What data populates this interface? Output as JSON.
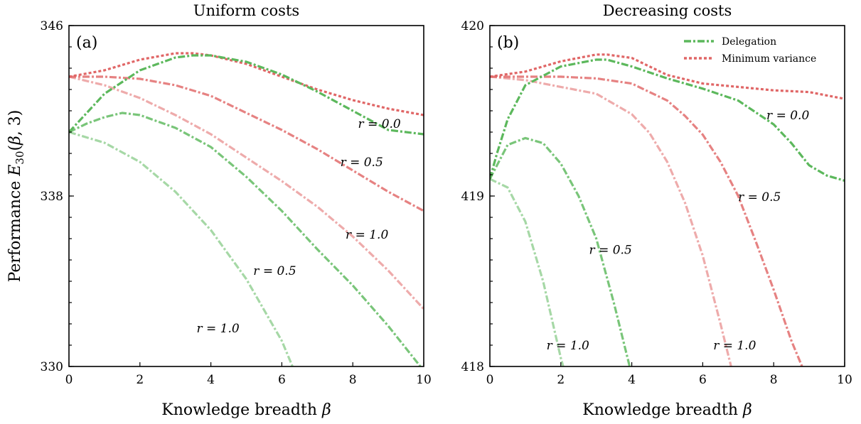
{
  "ylabel": "Performance E30(β, 3)",
  "chart_data": [
    {
      "type": "line",
      "panel": "(a)",
      "title": "Uniform costs",
      "xlabel": "Knowledge breadth β",
      "xlim": [
        0,
        10
      ],
      "ylim": [
        330,
        346
      ],
      "xticks": [
        0,
        2,
        4,
        6,
        8,
        10
      ],
      "yticks": [
        330,
        338,
        346
      ],
      "yminor_step": 1,
      "xtick_labels": [
        "0",
        "2",
        "4",
        "6",
        "8",
        "10"
      ],
      "ytick_labels": [
        "330",
        "338",
        "346"
      ],
      "series": [
        {
          "group": "Minimum variance",
          "r": 0.0,
          "x": [
            0,
            1,
            2,
            3,
            3.5,
            4,
            5,
            6,
            7,
            8,
            9,
            10
          ],
          "y": [
            343.6,
            343.9,
            344.4,
            344.7,
            344.7,
            344.6,
            344.2,
            343.6,
            343.0,
            342.5,
            342.1,
            341.8
          ]
        },
        {
          "group": "Minimum variance",
          "r": 0.5,
          "x": [
            0,
            1,
            2,
            3,
            4,
            5,
            6,
            7,
            8,
            9,
            10
          ],
          "y": [
            343.6,
            343.6,
            343.5,
            343.2,
            342.7,
            341.9,
            341.1,
            340.2,
            339.2,
            338.2,
            337.3
          ]
        },
        {
          "group": "Minimum variance",
          "r": 1.0,
          "x": [
            0,
            1,
            2,
            3,
            4,
            5,
            6,
            7,
            8,
            9,
            10
          ],
          "y": [
            343.6,
            343.2,
            342.6,
            341.8,
            340.9,
            339.8,
            338.7,
            337.5,
            336.1,
            334.5,
            332.7
          ]
        },
        {
          "group": "Delegation",
          "r": 0.0,
          "x": [
            0,
            0.5,
            1,
            2,
            3,
            3.5,
            4,
            5,
            6,
            7,
            8,
            9,
            10
          ],
          "y": [
            341.0,
            341.9,
            342.8,
            343.9,
            344.5,
            344.6,
            344.6,
            344.3,
            343.7,
            342.9,
            342.0,
            341.1,
            340.9
          ]
        },
        {
          "group": "Delegation",
          "r": 0.5,
          "x": [
            0,
            0.5,
            1,
            1.5,
            2,
            3,
            4,
            5,
            6,
            7,
            8,
            9,
            10
          ],
          "y": [
            341.0,
            341.4,
            341.7,
            341.9,
            341.8,
            341.2,
            340.3,
            338.9,
            337.3,
            335.5,
            333.8,
            331.9,
            329.8
          ]
        },
        {
          "group": "Delegation",
          "r": 1.0,
          "x": [
            0,
            1,
            2,
            3,
            4,
            5,
            6,
            6.3
          ],
          "y": [
            341.0,
            340.5,
            339.6,
            338.2,
            336.4,
            334.1,
            331.2,
            330.0
          ]
        }
      ],
      "annotations": [
        {
          "text": "r = 0.0",
          "x": 8.75,
          "y": 341.2
        },
        {
          "text": "r = 0.5",
          "x": 8.25,
          "y": 339.4
        },
        {
          "text": "r = 1.0",
          "x": 8.4,
          "y": 336.0
        },
        {
          "text": "r = 0.5",
          "x": 5.8,
          "y": 334.3
        },
        {
          "text": "r = 1.0",
          "x": 4.2,
          "y": 331.6
        }
      ]
    },
    {
      "type": "line",
      "panel": "(b)",
      "title": "Decreasing costs",
      "xlabel": "Knowledge breadth β",
      "xlim": [
        0,
        10
      ],
      "ylim": [
        418,
        420
      ],
      "xticks": [
        0,
        2,
        4,
        6,
        8,
        10
      ],
      "yticks": [
        418,
        419,
        420
      ],
      "yminor_step": 0.125,
      "xtick_labels": [
        "0",
        "2",
        "4",
        "6",
        "8",
        "10"
      ],
      "ytick_labels": [
        "418",
        "419",
        "420"
      ],
      "legend": {
        "position": "top-right",
        "entries": [
          "Delegation",
          "Minimum variance"
        ]
      },
      "series": [
        {
          "group": "Minimum variance",
          "r": 0.0,
          "x": [
            0,
            1,
            2,
            3,
            3.3,
            4,
            5,
            6,
            7,
            8,
            9,
            10
          ],
          "y": [
            419.7,
            419.73,
            419.79,
            419.83,
            419.83,
            419.81,
            419.71,
            419.66,
            419.64,
            419.62,
            419.61,
            419.57
          ]
        },
        {
          "group": "Minimum variance",
          "r": 0.5,
          "x": [
            0,
            1,
            2,
            3,
            4,
            5,
            5.5,
            6,
            6.5,
            7,
            7.5,
            8,
            8.5,
            8.8
          ],
          "y": [
            419.7,
            419.7,
            419.7,
            419.69,
            419.66,
            419.56,
            419.47,
            419.36,
            419.2,
            419.0,
            418.73,
            418.45,
            418.15,
            418.0
          ]
        },
        {
          "group": "Minimum variance",
          "r": 1.0,
          "x": [
            0,
            1,
            2,
            3,
            4,
            4.5,
            5,
            5.5,
            6,
            6.5,
            6.8
          ],
          "y": [
            419.7,
            419.68,
            419.64,
            419.6,
            419.48,
            419.37,
            419.2,
            418.96,
            418.65,
            418.25,
            418.0
          ]
        },
        {
          "group": "Delegation",
          "r": 0.0,
          "x": [
            0,
            0.2,
            0.5,
            1,
            2,
            3,
            3.3,
            4,
            5,
            6,
            7,
            8,
            8.5,
            9,
            9.5,
            10
          ],
          "y": [
            419.1,
            419.25,
            419.45,
            419.65,
            419.76,
            419.8,
            419.8,
            419.76,
            419.69,
            419.63,
            419.56,
            419.42,
            419.31,
            419.18,
            419.12,
            419.09
          ]
        },
        {
          "group": "Delegation",
          "r": 0.5,
          "x": [
            0,
            0.5,
            1,
            1.5,
            2,
            2.5,
            3,
            3.5,
            4
          ],
          "y": [
            419.1,
            419.3,
            419.34,
            419.31,
            419.19,
            419.0,
            418.75,
            418.37,
            417.95
          ]
        },
        {
          "group": "Delegation",
          "r": 1.0,
          "x": [
            0,
            0.5,
            1,
            1.5,
            2,
            2.2
          ],
          "y": [
            419.1,
            419.05,
            418.85,
            418.5,
            418.05,
            417.9
          ]
        }
      ],
      "annotations": [
        {
          "text": "r = 0.0",
          "x": 8.4,
          "y": 419.45
        },
        {
          "text": "r = 0.5",
          "x": 7.6,
          "y": 418.97
        },
        {
          "text": "r = 0.5",
          "x": 3.4,
          "y": 418.66
        },
        {
          "text": "r = 1.0",
          "x": 2.2,
          "y": 418.1
        },
        {
          "text": "r = 1.0",
          "x": 6.9,
          "y": 418.1
        }
      ]
    }
  ],
  "colors": {
    "delegation": "#5cb85c",
    "minimum_variance": "#e06666"
  }
}
